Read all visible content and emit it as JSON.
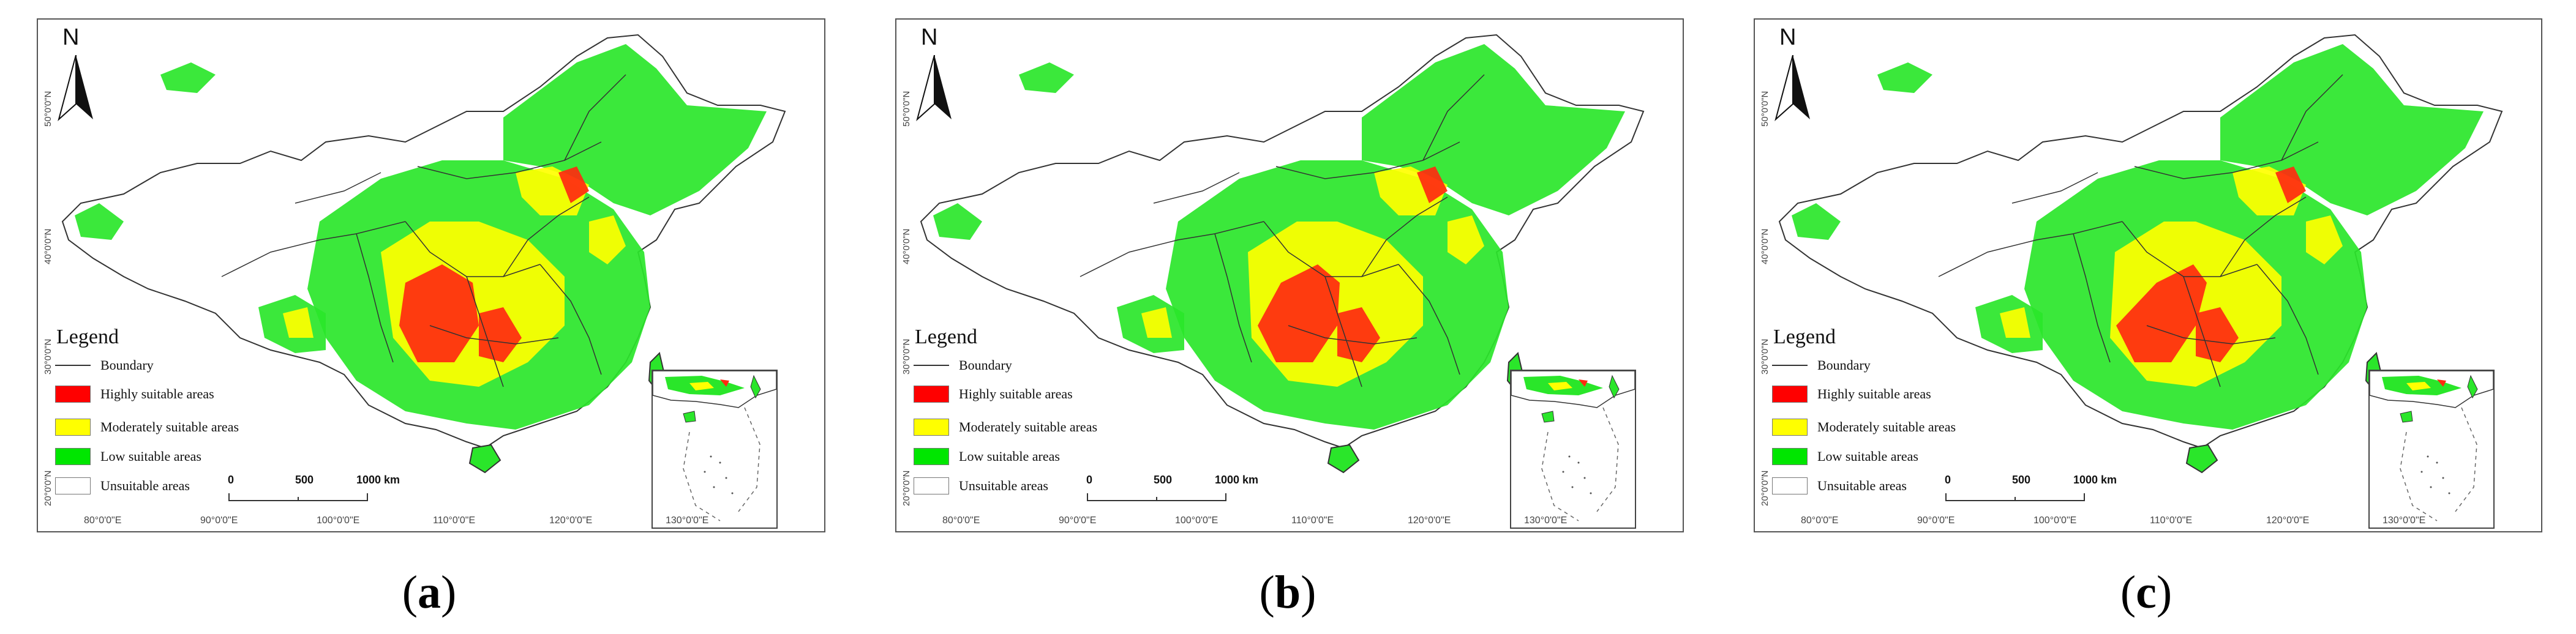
{
  "colors": {
    "highly": "#ff2a10",
    "moderately": "#ffff00",
    "low": "#2ae62a",
    "unsuitable": "#ffffff",
    "boundary": "#333333"
  },
  "north_label": "N",
  "legend": {
    "title": "Legend",
    "items": [
      {
        "label": "Boundary",
        "kind": "line"
      },
      {
        "label": "Highly suitable areas",
        "kind": "fill",
        "color": "#ff0000"
      },
      {
        "label": "Moderately suitable areas",
        "kind": "fill",
        "color": "#ffff00"
      },
      {
        "label": "Low suitable areas",
        "kind": "fill",
        "color": "#00e600"
      },
      {
        "label": "Unsuitable areas",
        "kind": "fill",
        "color": "#ffffff"
      }
    ]
  },
  "scale_bar": [
    "0",
    "500",
    "1000 km"
  ],
  "lat_labels": [
    "50°0'0\"N",
    "40°0'0\"N",
    "30°0'0\"N",
    "20°0'0\"N"
  ],
  "lon_labels": [
    "80°0'0\"E",
    "90°0'0\"E",
    "100°0'0\"E",
    "110°0'0\"E",
    "120°0'0\"E",
    "130°0'0\"E"
  ],
  "panels": [
    {
      "letter": "a"
    },
    {
      "letter": "b"
    },
    {
      "letter": "c"
    }
  ]
}
